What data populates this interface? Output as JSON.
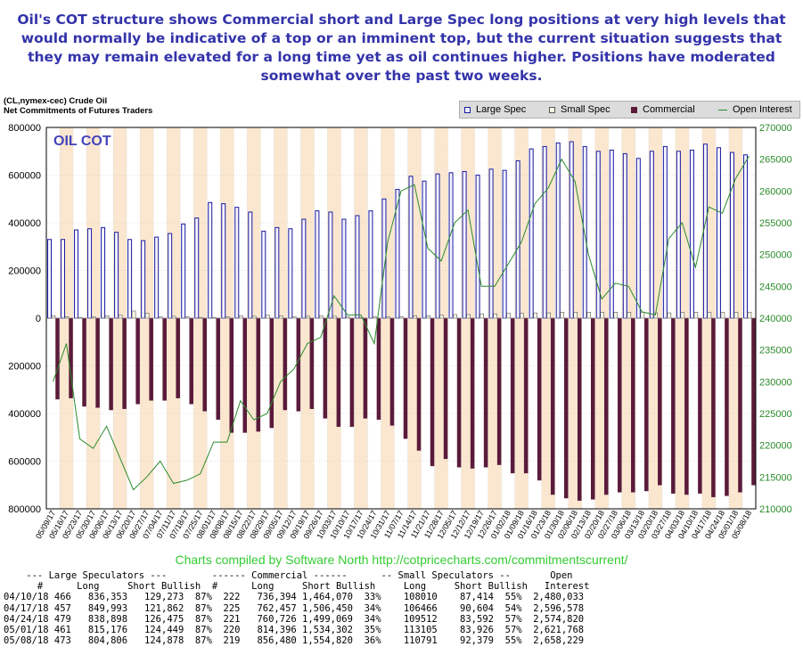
{
  "headline": "Oil's COT structure shows Commercial short and Large Spec long positions at very high levels that would normally be indicative of a top or an imminent top, but the current situation suggests that they may remain elevated for a long time yet as oil continues higher. Positions have moderated somewhat over the past two weeks.",
  "symbol_line": "(CL,nymex-cec) Crude Oil",
  "subtitle_line": "Net Commitments of Futures Traders",
  "credit": "Charts compiled by Software North  http://cotpricecharts.com/commitmentscurrent/",
  "colors": {
    "large_spec": "#1a1aa0",
    "small_spec_fill": "#fdfbe8",
    "commercial": "#5a1a3a",
    "open_interest": "#2a8a2a",
    "band": "#fbe7cf",
    "left_axis": "#000000",
    "right_axis": "#2a8a2a",
    "title_text": "#3333aa",
    "credit_text": "#33cc33"
  },
  "chart_data": {
    "type": "bar",
    "title": "OIL COT",
    "legend_position": "top-right",
    "grid": true,
    "x": [
      "05/09/17",
      "05/16/17",
      "05/23/17",
      "05/30/17",
      "06/06/17",
      "06/13/17",
      "06/20/17",
      "06/27/17",
      "07/04/17",
      "07/11/17",
      "07/18/17",
      "07/25/17",
      "08/01/17",
      "08/08/17",
      "08/15/17",
      "08/22/17",
      "08/29/17",
      "09/05/17",
      "09/12/17",
      "09/19/17",
      "09/26/17",
      "10/03/17",
      "10/10/17",
      "10/17/17",
      "10/24/17",
      "10/31/17",
      "11/07/17",
      "11/14/17",
      "11/21/17",
      "11/28/17",
      "12/05/17",
      "12/12/17",
      "12/19/17",
      "12/26/17",
      "01/02/18",
      "01/09/18",
      "01/16/18",
      "01/23/18",
      "01/30/18",
      "02/06/18",
      "02/13/18",
      "02/20/18",
      "02/27/18",
      "03/06/18",
      "03/13/18",
      "03/20/18",
      "03/27/18",
      "04/03/18",
      "04/10/18",
      "04/17/18",
      "04/24/18",
      "05/01/18",
      "05/08/18"
    ],
    "x_tick_labels": [
      "05/09/17",
      "05/16/17",
      "05/23/17",
      "05/30/17",
      "06/06/17",
      "06/13/17",
      "06/20/17",
      "06/27/17",
      "07/04/17",
      "07/11/17",
      "07/18/17",
      "07/25/17",
      "08/01/17",
      "08/08/17",
      "08/15/17",
      "08/22/17",
      "08/29/17",
      "09/05/17",
      "09/12/17",
      "09/19/17",
      "09/26/17",
      "10/03/17",
      "10/10/17",
      "10/17/17",
      "10/24/17",
      "10/31/17",
      "11/07/17",
      "11/14/17",
      "11/21/17",
      "11/28/17",
      "12/05/17",
      "12/12/17",
      "12/19/17",
      "12/26/17",
      "01/02/18",
      "01/09/18",
      "01/16/18",
      "01/23/18",
      "01/30/18",
      "02/06/18",
      "02/13/18",
      "02/20/18",
      "02/27/18",
      "03/06/18",
      "03/13/18",
      "03/20/18",
      "03/27/18",
      "04/03/18",
      "04/10/18",
      "04/17/18",
      "04/24/18",
      "05/01/18",
      "05/08/18"
    ],
    "y_left_ticks": [
      "800000",
      "600000",
      "400000",
      "200000",
      "0",
      "200000",
      "400000",
      "600000",
      "800000"
    ],
    "y_right_ticks": [
      "270000",
      "265000",
      "260000",
      "255000",
      "250000",
      "245000",
      "240000",
      "235000",
      "230000",
      "225000",
      "220000",
      "215000",
      "210000"
    ],
    "ylim_left": [
      -800000,
      800000
    ],
    "ylim_right": [
      210000,
      270000
    ],
    "series": [
      {
        "name": "Large Spec",
        "axis": "left",
        "values": [
          330000,
          330000,
          370000,
          375000,
          380000,
          360000,
          330000,
          325000,
          340000,
          355000,
          395000,
          420000,
          485000,
          480000,
          465000,
          445000,
          365000,
          380000,
          375000,
          415000,
          450000,
          445000,
          415000,
          430000,
          450000,
          500000,
          540000,
          595000,
          575000,
          605000,
          610000,
          615000,
          600000,
          625000,
          620000,
          660000,
          710000,
          720000,
          735000,
          740000,
          720000,
          700000,
          705000,
          690000,
          670000,
          700000,
          720000,
          700000,
          705000,
          730000,
          715000,
          695000,
          685000
        ]
      },
      {
        "name": "Small Spec",
        "axis": "left",
        "values": [
          10000,
          5000,
          3000,
          5000,
          10000,
          12000,
          30000,
          20000,
          5000,
          8000,
          5000,
          3000,
          3000,
          5000,
          10000,
          8000,
          12000,
          10000,
          5000,
          8000,
          10000,
          8000,
          5000,
          3000,
          5000,
          5000,
          5000,
          10000,
          10000,
          12000,
          15000,
          15000,
          18000,
          18000,
          20000,
          20000,
          22000,
          22000,
          25000,
          25000,
          25000,
          25000,
          25000,
          25000,
          25000,
          22000,
          22000,
          24000,
          25000,
          25000,
          24000,
          24000,
          25000
        ]
      },
      {
        "name": "Commercial",
        "axis": "left",
        "values": [
          -340000,
          -335000,
          -370000,
          -375000,
          -385000,
          -380000,
          -360000,
          -345000,
          -345000,
          -335000,
          -360000,
          -390000,
          -425000,
          -480000,
          -480000,
          -475000,
          -460000,
          -385000,
          -390000,
          -380000,
          -420000,
          -455000,
          -455000,
          -420000,
          -425000,
          -450000,
          -505000,
          -555000,
          -620000,
          -590000,
          -625000,
          -630000,
          -625000,
          -615000,
          -650000,
          -650000,
          -680000,
          -740000,
          -755000,
          -765000,
          -760000,
          -740000,
          -730000,
          -730000,
          -725000,
          -700000,
          -735000,
          -740000,
          -735000,
          -750000,
          -745000,
          -730000,
          -700000
        ]
      },
      {
        "name": "Open Interest",
        "axis": "right",
        "values": [
          230000,
          236000,
          221000,
          219500,
          223000,
          218000,
          213000,
          215000,
          217500,
          214000,
          214500,
          215500,
          220500,
          220500,
          227000,
          224000,
          225000,
          230000,
          232000,
          236000,
          237000,
          243500,
          240500,
          240500,
          236000,
          252000,
          260000,
          261000,
          251000,
          249000,
          255000,
          257000,
          245000,
          245000,
          248500,
          252000,
          258000,
          260500,
          265000,
          261500,
          250000,
          243000,
          245500,
          245000,
          241000,
          240500,
          252500,
          255000,
          248000,
          257500,
          256500,
          262000,
          265500
        ]
      }
    ]
  },
  "table": {
    "header1": "    --- Large Speculators ---        ------ Commercial ------      -- Small Speculators --       Open",
    "header2": "      #      Long     Short Bullish  #      Long     Short Bullish     Long     Short Bullish   Interest",
    "rows": [
      "04/10/18 466   836,353   129,273  87%  222   736,394 1,464,070  33%    108010    87,414  55%  2,480,033",
      "04/17/18 457   849,993   121,862  87%  225   762,457 1,506,450  34%    106466    90,604  54%  2,596,578",
      "04/24/18 479   838,898   126,475  87%  221   760,726 1,499,069  34%    109512    83,592  57%  2,574,820",
      "05/01/18 461   815,176   124,449  87%  220   814,396 1,534,302  35%    113105    83,926  57%  2,621,768",
      "05/08/18 473   804,806   124,878  87%  219   856,480 1,554,820  36%    110791    92,379  55%  2,658,229"
    ]
  }
}
